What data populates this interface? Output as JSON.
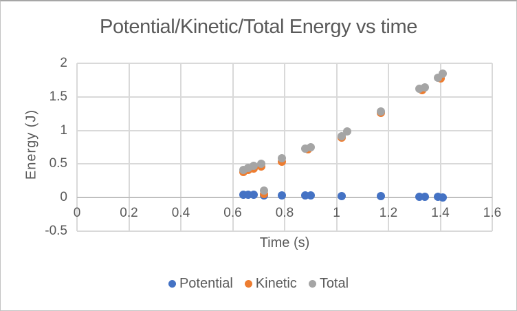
{
  "frame": {
    "background": "#ffffff",
    "border_color": "#c2c2c2"
  },
  "chart_data": {
    "type": "scatter",
    "title": "Potential/Kinetic/Total Energy vs time",
    "xlabel": "Time (s)",
    "ylabel": "Energy (J)",
    "xlim": [
      0,
      1.6
    ],
    "ylim": [
      -0.5,
      2
    ],
    "grid": true,
    "legend_position": "bottom",
    "gridline_color": "#d9d9d9",
    "zero_axis_color": "#bfbfbf",
    "text_color": "#595959",
    "x_ticks": [
      {
        "value": 0,
        "label": "0"
      },
      {
        "value": 0.2,
        "label": "0.2"
      },
      {
        "value": 0.4,
        "label": "0.4"
      },
      {
        "value": 0.6,
        "label": "0.6"
      },
      {
        "value": 0.8,
        "label": "0.8"
      },
      {
        "value": 1,
        "label": "1"
      },
      {
        "value": 1.2,
        "label": "1.2"
      },
      {
        "value": 1.4,
        "label": "1.4"
      },
      {
        "value": 1.6,
        "label": "1.6"
      }
    ],
    "y_ticks": [
      {
        "value": -0.5,
        "label": "-0.5"
      },
      {
        "value": 0,
        "label": "0"
      },
      {
        "value": 0.5,
        "label": "0.5"
      },
      {
        "value": 1,
        "label": "1"
      },
      {
        "value": 1.5,
        "label": "1.5"
      },
      {
        "value": 2,
        "label": "2"
      }
    ],
    "series": [
      {
        "name": "Potential",
        "color": "#4472C4",
        "points": [
          [
            0.64,
            0.04
          ],
          [
            0.66,
            0.04
          ],
          [
            0.68,
            0.04
          ],
          [
            0.72,
            0.03
          ],
          [
            0.79,
            0.03
          ],
          [
            0.88,
            0.03
          ],
          [
            0.9,
            0.03
          ],
          [
            1.02,
            0.02
          ],
          [
            1.17,
            0.02
          ],
          [
            1.32,
            0.01
          ],
          [
            1.34,
            0.01
          ],
          [
            1.39,
            0.01
          ],
          [
            1.41,
            0.0
          ]
        ]
      },
      {
        "name": "Kinetic",
        "color": "#ED7D31",
        "points": [
          [
            0.64,
            0.38
          ],
          [
            0.66,
            0.41
          ],
          [
            0.68,
            0.43
          ],
          [
            0.71,
            0.46
          ],
          [
            0.72,
            0.055
          ],
          [
            0.79,
            0.53
          ],
          [
            0.89,
            0.72
          ],
          [
            1.02,
            0.89
          ],
          [
            1.17,
            1.26
          ],
          [
            1.33,
            1.6
          ],
          [
            1.4,
            1.77
          ]
        ]
      },
      {
        "name": "Total",
        "color": "#A5A5A5",
        "points": [
          [
            0.64,
            0.41
          ],
          [
            0.66,
            0.44
          ],
          [
            0.68,
            0.47
          ],
          [
            0.71,
            0.5
          ],
          [
            0.72,
            0.1
          ],
          [
            0.79,
            0.59
          ],
          [
            0.88,
            0.73
          ],
          [
            0.9,
            0.75
          ],
          [
            1.02,
            0.91
          ],
          [
            1.04,
            0.99
          ],
          [
            1.17,
            1.28
          ],
          [
            1.32,
            1.62
          ],
          [
            1.34,
            1.64
          ],
          [
            1.39,
            1.78
          ],
          [
            1.41,
            1.85
          ]
        ]
      }
    ]
  }
}
